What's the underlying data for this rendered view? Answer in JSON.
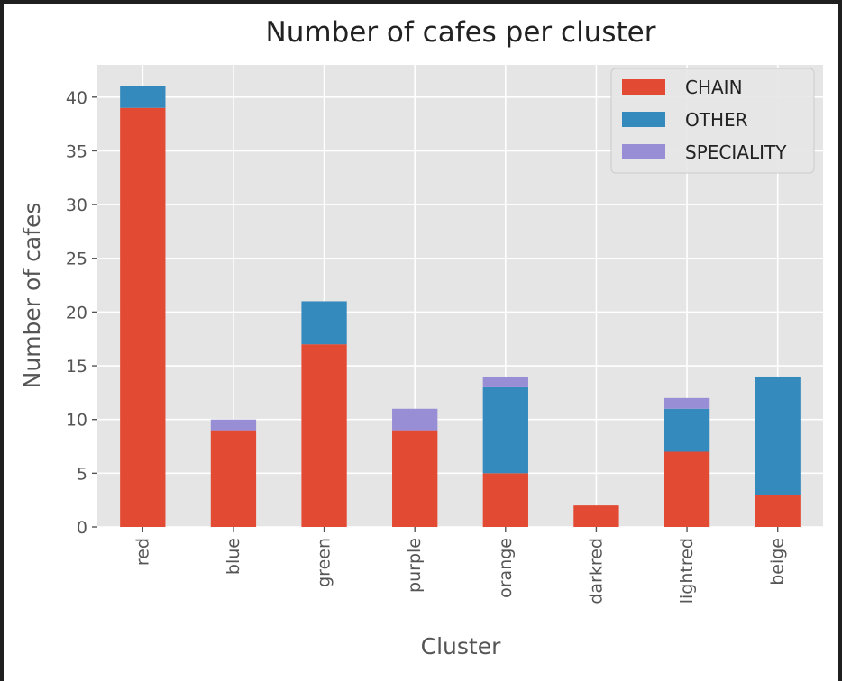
{
  "chart_data": {
    "type": "bar",
    "stacked": true,
    "title": "Number of cafes per cluster",
    "xlabel": "Cluster",
    "ylabel": "Number of cafes",
    "categories": [
      "red",
      "blue",
      "green",
      "purple",
      "orange",
      "darkred",
      "lightred",
      "beige"
    ],
    "series": [
      {
        "name": "CHAIN",
        "color": "#E24A33",
        "values": [
          39,
          9,
          17,
          9,
          5,
          2,
          7,
          3
        ]
      },
      {
        "name": "OTHER",
        "color": "#348ABD",
        "values": [
          2,
          0,
          4,
          0,
          8,
          0,
          4,
          11
        ]
      },
      {
        "name": "SPECIALITY",
        "color": "#988ED5",
        "values": [
          0,
          1,
          0,
          2,
          1,
          0,
          1,
          0
        ]
      }
    ],
    "ylim": [
      0,
      43
    ],
    "yticks": [
      0,
      5,
      10,
      15,
      20,
      25,
      30,
      35,
      40
    ],
    "grid": true,
    "legend": "top-right"
  }
}
